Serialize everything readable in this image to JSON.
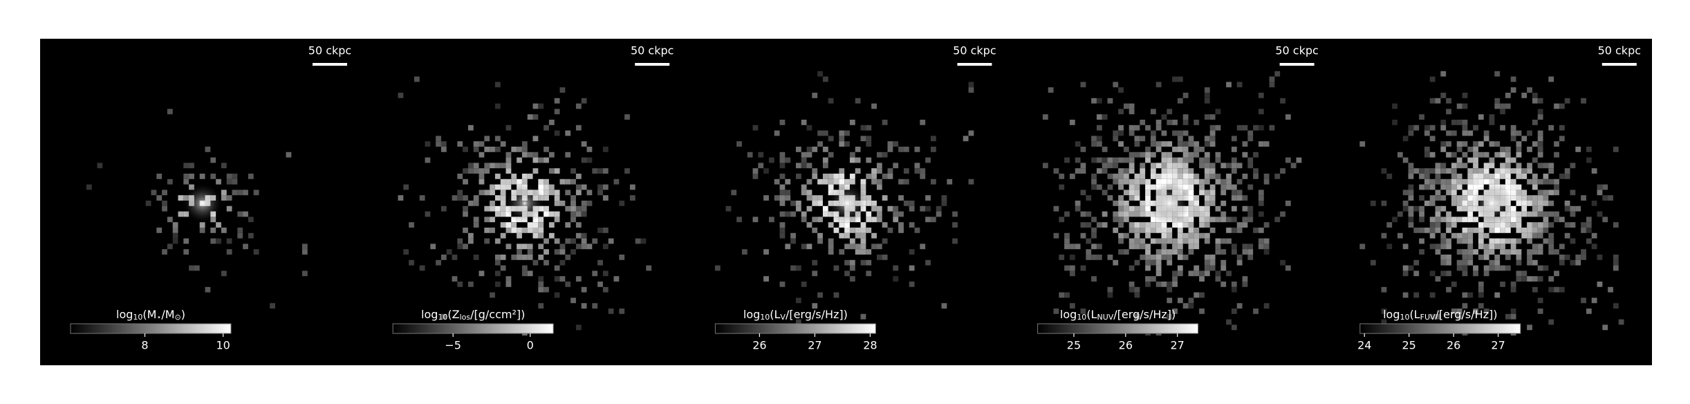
{
  "chart_data": [
    {
      "type": "image",
      "scale_bar": "50 ckpc",
      "colorbar": {
        "label_parts": [
          "log",
          "10",
          "(M",
          "⋆",
          "/M",
          "⊙",
          ")"
        ],
        "clim": [
          6.1,
          10.2
        ],
        "ticks": [
          8,
          10
        ]
      }
    },
    {
      "type": "image",
      "scale_bar": "50 ckpc",
      "colorbar": {
        "label_parts": [
          "log",
          "10",
          "(Z",
          "los",
          "/[g/ccm²])"
        ],
        "clim": [
          -8.9,
          1.5
        ],
        "ticks": [
          {
            "value": -5,
            "label": "−5"
          },
          0
        ]
      }
    },
    {
      "type": "image",
      "scale_bar": "50 ckpc",
      "colorbar": {
        "label_parts": [
          "log",
          "10",
          "(L",
          "V",
          "/[erg/s/Hz])"
        ],
        "clim": [
          25.2,
          28.1
        ],
        "ticks": [
          26,
          27,
          28
        ]
      }
    },
    {
      "type": "image",
      "scale_bar": "50 ckpc",
      "colorbar": {
        "label_parts": [
          "log",
          "10",
          "(L",
          "NUV",
          "/[erg/s/Hz])"
        ],
        "clim": [
          24.3,
          27.4
        ],
        "ticks": [
          25,
          26,
          27
        ]
      }
    },
    {
      "type": "image",
      "scale_bar": "50 ckpc",
      "colorbar": {
        "label_parts": [
          "log",
          "10",
          "(L",
          "FUV",
          "/[erg/s/Hz])"
        ],
        "clim": [
          23.9,
          27.5
        ],
        "ticks": [
          24,
          25,
          26,
          27
        ]
      }
    }
  ]
}
